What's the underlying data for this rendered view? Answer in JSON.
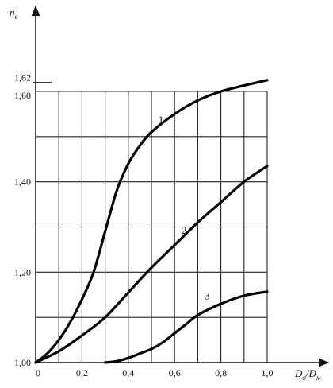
{
  "chart_data": {
    "type": "line",
    "title": "",
    "ylabel": {
      "main": "η",
      "sub": "в"
    },
    "xlabel": {
      "a_main": "D",
      "a_sub": "o",
      "sep": "/",
      "b_main": "D",
      "b_sub": "м"
    },
    "xlim": [
      0,
      1.0
    ],
    "ylim": [
      1.0,
      1.64
    ],
    "grid": true,
    "x_ticks": [
      {
        "value": 0,
        "label": "0"
      },
      {
        "value": 0.2,
        "label": "0,2"
      },
      {
        "value": 0.4,
        "label": "0,4"
      },
      {
        "value": 0.6,
        "label": "0,6"
      },
      {
        "value": 0.8,
        "label": "0,8"
      },
      {
        "value": 1.0,
        "label": "1,0"
      }
    ],
    "y_ticks": [
      {
        "value": 1.0,
        "label": "1,00"
      },
      {
        "value": 1.2,
        "label": "1,20"
      },
      {
        "value": 1.4,
        "label": "1,40"
      },
      {
        "value": 1.6,
        "label": "1,60"
      },
      {
        "value": 1.62,
        "label": "1,62"
      }
    ],
    "series": [
      {
        "label": "1",
        "label_at": [
          0.53,
          1.53
        ],
        "x": [
          0,
          0.05,
          0.1,
          0.15,
          0.2,
          0.25,
          0.3,
          0.35,
          0.4,
          0.45,
          0.5,
          0.6,
          0.7,
          0.8,
          0.9,
          1.0
        ],
        "y": [
          1.0,
          1.02,
          1.05,
          1.09,
          1.14,
          1.2,
          1.29,
          1.38,
          1.44,
          1.48,
          1.51,
          1.55,
          1.58,
          1.6,
          1.613,
          1.625
        ]
      },
      {
        "label": "2",
        "label_at": [
          0.63,
          1.285
        ],
        "x": [
          0,
          0.1,
          0.2,
          0.3,
          0.4,
          0.5,
          0.6,
          0.7,
          0.8,
          0.9,
          1.0
        ],
        "y": [
          1.0,
          1.025,
          1.06,
          1.1,
          1.155,
          1.21,
          1.26,
          1.31,
          1.355,
          1.4,
          1.435
        ]
      },
      {
        "label": "3",
        "label_at": [
          0.73,
          1.14
        ],
        "x": [
          0.3,
          0.35,
          0.4,
          0.45,
          0.5,
          0.55,
          0.6,
          0.65,
          0.7,
          0.8,
          0.9,
          1.0
        ],
        "y": [
          1.0,
          1.003,
          1.01,
          1.02,
          1.03,
          1.045,
          1.065,
          1.085,
          1.105,
          1.13,
          1.148,
          1.157
        ]
      }
    ]
  }
}
